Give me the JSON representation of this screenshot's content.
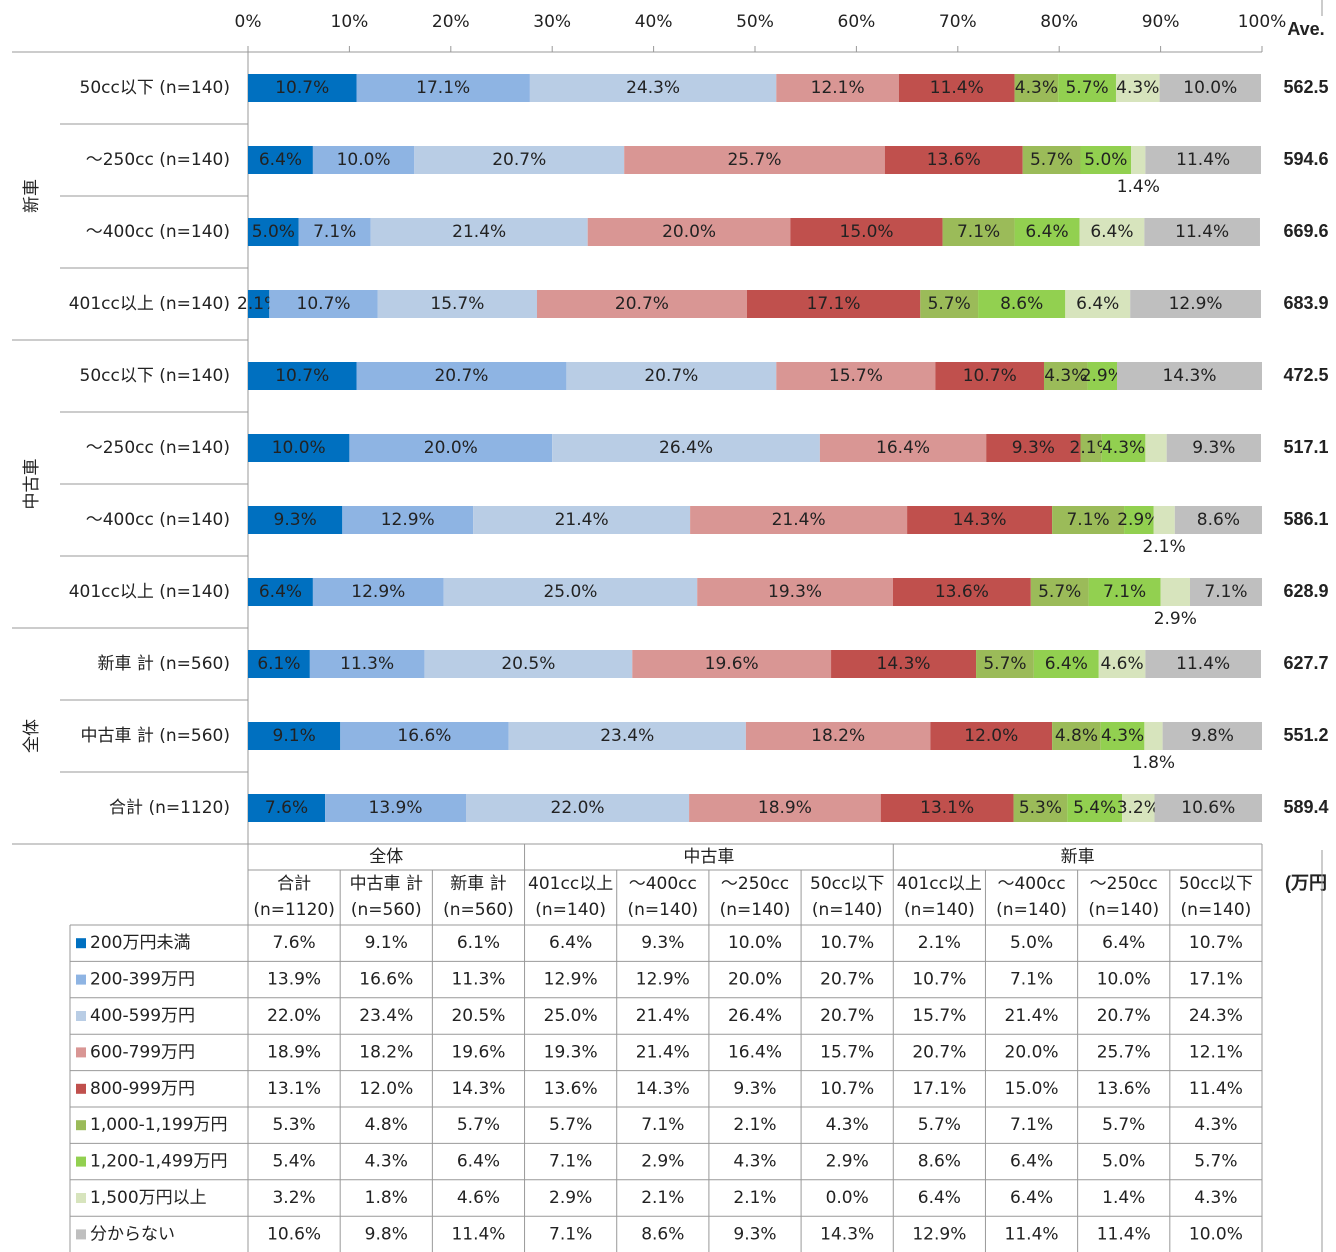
{
  "chart_data": {
    "type": "bar",
    "orientation": "horizontal",
    "stacked": true,
    "groups": [
      {
        "name": "新車",
        "categories": [
          "50cc以下 (n=140)",
          "～250cc (n=140)",
          "～400cc (n=140)",
          "401cc以上 (n=140)"
        ]
      },
      {
        "name": "中古車",
        "categories": [
          "50cc以下 (n=140)",
          "～250cc (n=140)",
          "～400cc (n=140)",
          "401cc以上 (n=140)"
        ]
      },
      {
        "name": "全体",
        "categories": [
          "新車 計 (n=560)",
          "中古車 計 (n=560)",
          "合計 (n=1120)"
        ]
      }
    ],
    "xlim": [
      0,
      100
    ],
    "xticks": [
      {
        "value": 0,
        "label": "0%"
      },
      {
        "value": 10,
        "label": "10%"
      },
      {
        "value": 20,
        "label": "20%"
      },
      {
        "value": 30,
        "label": "30%"
      },
      {
        "value": 40,
        "label": "40%"
      },
      {
        "value": 50,
        "label": "50%"
      },
      {
        "value": 60,
        "label": "60%"
      },
      {
        "value": 70,
        "label": "70%"
      },
      {
        "value": 80,
        "label": "80%"
      },
      {
        "value": 90,
        "label": "90%"
      },
      {
        "value": 100,
        "label": "100%"
      }
    ],
    "series": [
      {
        "name": "200万円未満",
        "color": "#0070c0",
        "values": [
          10.7,
          6.4,
          5.0,
          2.1,
          10.7,
          10.0,
          9.3,
          6.4,
          6.1,
          9.1,
          7.6
        ],
        "value_labels": [
          "10.7%",
          "6.4%",
          "5.0%",
          "2.1%",
          "10.7%",
          "10.0%",
          "9.3%",
          "6.4%",
          "6.1%",
          "9.1%",
          "7.6%"
        ]
      },
      {
        "name": "200-399万円",
        "color": "#8eb4e3",
        "values": [
          17.1,
          10.0,
          7.1,
          10.7,
          20.7,
          20.0,
          12.9,
          12.9,
          11.3,
          16.6,
          13.9
        ],
        "value_labels": [
          "17.1%",
          "10.0%",
          "7.1%",
          "10.7%",
          "20.7%",
          "20.0%",
          "12.9%",
          "12.9%",
          "11.3%",
          "16.6%",
          "13.9%"
        ]
      },
      {
        "name": "400-599万円",
        "color": "#b9cde5",
        "values": [
          24.3,
          20.7,
          21.4,
          15.7,
          20.7,
          26.4,
          21.4,
          25.0,
          20.5,
          23.4,
          22.0
        ],
        "value_labels": [
          "24.3%",
          "20.7%",
          "21.4%",
          "15.7%",
          "20.7%",
          "26.4%",
          "21.4%",
          "25.0%",
          "20.5%",
          "23.4%",
          "22.0%"
        ]
      },
      {
        "name": "600-799万円",
        "color": "#d99694",
        "values": [
          12.1,
          25.7,
          20.0,
          20.7,
          15.7,
          16.4,
          21.4,
          19.3,
          19.6,
          18.2,
          18.9
        ],
        "value_labels": [
          "12.1%",
          "25.7%",
          "20.0%",
          "20.7%",
          "15.7%",
          "16.4%",
          "21.4%",
          "19.3%",
          "19.6%",
          "18.2%",
          "18.9%"
        ]
      },
      {
        "name": "800-999万円",
        "color": "#c0504d",
        "values": [
          11.4,
          13.6,
          15.0,
          17.1,
          10.7,
          9.3,
          14.3,
          13.6,
          14.3,
          12.0,
          13.1
        ],
        "value_labels": [
          "11.4%",
          "13.6%",
          "15.0%",
          "17.1%",
          "10.7%",
          "9.3%",
          "14.3%",
          "13.6%",
          "14.3%",
          "12.0%",
          "13.1%"
        ]
      },
      {
        "name": "1,000-1,199万円",
        "color": "#9bbb59",
        "values": [
          4.3,
          5.7,
          7.1,
          5.7,
          4.3,
          2.1,
          7.1,
          5.7,
          5.7,
          4.8,
          5.3
        ],
        "value_labels": [
          "4.3%",
          "5.7%",
          "7.1%",
          "5.7%",
          "4.3%",
          "2.1%",
          "7.1%",
          "5.7%",
          "5.7%",
          "4.8%",
          "5.3%"
        ]
      },
      {
        "name": "1,200-1,499万円",
        "color": "#92d050",
        "values": [
          5.7,
          5.0,
          6.4,
          8.6,
          2.9,
          4.3,
          2.9,
          7.1,
          6.4,
          4.3,
          5.4
        ],
        "value_labels": [
          "5.7%",
          "5.0%",
          "6.4%",
          "8.6%",
          "2.9%",
          "4.3%",
          "2.9%",
          "7.1%",
          "6.4%",
          "4.3%",
          "5.4%"
        ]
      },
      {
        "name": "1,500万円以上",
        "color": "#d7e4bd",
        "values": [
          4.3,
          1.4,
          6.4,
          6.4,
          0.0,
          2.1,
          2.1,
          2.9,
          4.6,
          1.8,
          3.2
        ],
        "value_labels": [
          "4.3%",
          "1.4%",
          "6.4%",
          "6.4%",
          null,
          null,
          "2.1%",
          "2.9%",
          "4.6%",
          "1.8%",
          "3.2%"
        ]
      },
      {
        "name": "分からない",
        "color": "#bfbfbf",
        "values": [
          10.0,
          11.4,
          11.4,
          12.9,
          14.3,
          9.3,
          8.6,
          7.1,
          11.4,
          9.8,
          10.6
        ],
        "value_labels": [
          "10.0%",
          "11.4%",
          "11.4%",
          "12.9%",
          "14.3%",
          "9.3%",
          "8.6%",
          "7.1%",
          "11.4%",
          "9.8%",
          "10.6%"
        ]
      }
    ],
    "average_label": "Ave.",
    "averages": [
      562.5,
      594.6,
      669.6,
      683.9,
      472.5,
      517.1,
      586.1,
      628.9,
      627.7,
      551.2,
      589.4
    ]
  },
  "table": {
    "unit": "(万円",
    "groups": [
      {
        "name": "全体",
        "columns": [
          [
            "合計",
            "(n=1120)"
          ],
          [
            "中古車 計",
            "(n=560)"
          ],
          [
            "新車 計",
            "(n=560)"
          ]
        ]
      },
      {
        "name": "中古車",
        "columns": [
          [
            "401cc以上",
            "(n=140)"
          ],
          [
            "～400cc",
            "(n=140)"
          ],
          [
            "～250cc",
            "(n=140)"
          ],
          [
            "50cc以下",
            "(n=140)"
          ]
        ]
      },
      {
        "name": "新車",
        "columns": [
          [
            "401cc以上",
            "(n=140)"
          ],
          [
            "～400cc",
            "(n=140)"
          ],
          [
            "～250cc",
            "(n=140)"
          ],
          [
            "50cc以下",
            "(n=140)"
          ]
        ]
      }
    ],
    "cells": [
      [
        "7.6%",
        "9.1%",
        "6.1%",
        "6.4%",
        "9.3%",
        "10.0%",
        "10.7%",
        "2.1%",
        "5.0%",
        "6.4%",
        "10.7%"
      ],
      [
        "13.9%",
        "16.6%",
        "11.3%",
        "12.9%",
        "12.9%",
        "20.0%",
        "20.7%",
        "10.7%",
        "7.1%",
        "10.0%",
        "17.1%"
      ],
      [
        "22.0%",
        "23.4%",
        "20.5%",
        "25.0%",
        "21.4%",
        "26.4%",
        "20.7%",
        "15.7%",
        "21.4%",
        "20.7%",
        "24.3%"
      ],
      [
        "18.9%",
        "18.2%",
        "19.6%",
        "19.3%",
        "21.4%",
        "16.4%",
        "15.7%",
        "20.7%",
        "20.0%",
        "25.7%",
        "12.1%"
      ],
      [
        "13.1%",
        "12.0%",
        "14.3%",
        "13.6%",
        "14.3%",
        "9.3%",
        "10.7%",
        "17.1%",
        "15.0%",
        "13.6%",
        "11.4%"
      ],
      [
        "5.3%",
        "4.8%",
        "5.7%",
        "5.7%",
        "7.1%",
        "2.1%",
        "4.3%",
        "5.7%",
        "7.1%",
        "5.7%",
        "4.3%"
      ],
      [
        "5.4%",
        "4.3%",
        "6.4%",
        "7.1%",
        "2.9%",
        "4.3%",
        "2.9%",
        "8.6%",
        "6.4%",
        "5.0%",
        "5.7%"
      ],
      [
        "3.2%",
        "1.8%",
        "4.6%",
        "2.9%",
        "2.1%",
        "2.1%",
        "0.0%",
        "6.4%",
        "6.4%",
        "1.4%",
        "4.3%"
      ],
      [
        "10.6%",
        "9.8%",
        "11.4%",
        "7.1%",
        "8.6%",
        "9.3%",
        "14.3%",
        "12.9%",
        "11.4%",
        "11.4%",
        "10.0%"
      ]
    ]
  }
}
